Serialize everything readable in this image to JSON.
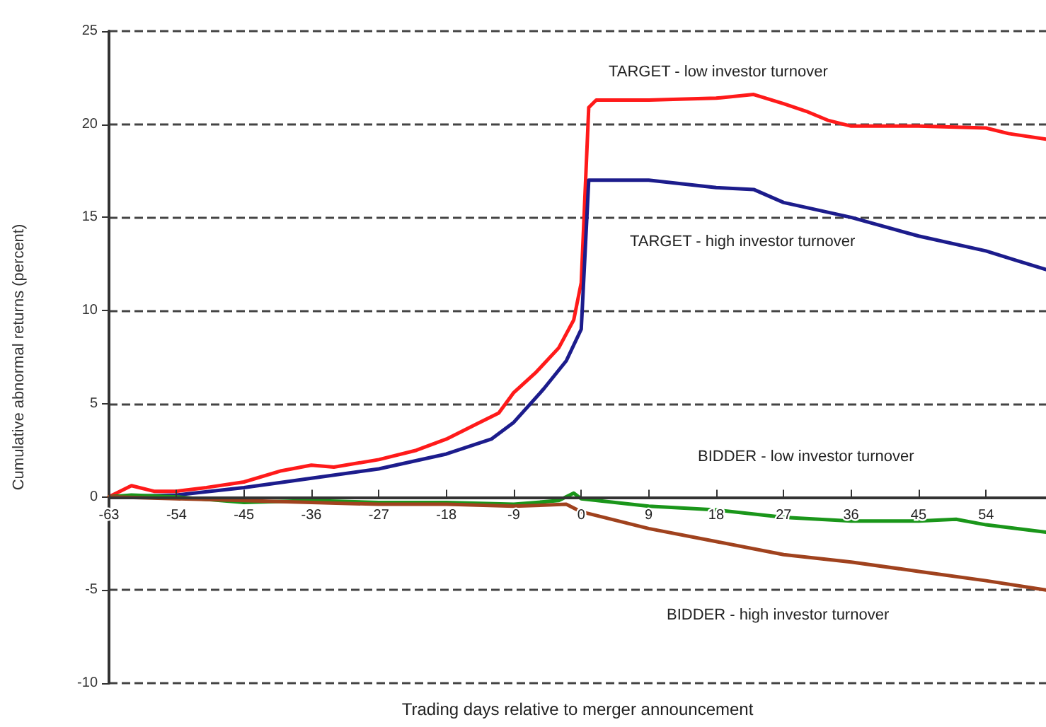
{
  "chart_data": {
    "type": "line",
    "xlabel": "Trading days relative to merger announcement",
    "ylabel": "Cumulative abnormal returns (percent)",
    "xlim": [
      -63,
      62
    ],
    "xticks": [
      -63,
      -54,
      -45,
      -36,
      -27,
      -18,
      -9,
      0,
      9,
      18,
      27,
      36,
      45,
      54
    ],
    "ylim": [
      -10,
      25
    ],
    "yticks": [
      -10,
      -5,
      0,
      5,
      10,
      15,
      20,
      25
    ],
    "grid": "y",
    "legend": false,
    "marker": "none",
    "line_style": "solid",
    "series": [
      {
        "name": "TARGET - low investor turnover",
        "color": "#ff1a1a",
        "x": [
          -63,
          -60,
          -57,
          -54,
          -50,
          -45,
          -40,
          -36,
          -33,
          -27,
          -22,
          -18,
          -14,
          -11,
          -9,
          -6,
          -3,
          -1,
          0,
          1,
          2,
          9,
          18,
          23,
          27,
          30,
          33,
          36,
          45,
          54,
          57,
          62
        ],
        "values": [
          0,
          0.6,
          0.3,
          0.3,
          0.5,
          0.8,
          1.4,
          1.7,
          1.6,
          2.0,
          2.5,
          3.1,
          3.9,
          4.5,
          5.6,
          6.7,
          8.0,
          9.5,
          11.5,
          20.9,
          21.3,
          21.3,
          21.4,
          21.6,
          21.1,
          20.7,
          20.2,
          19.9,
          19.9,
          19.8,
          19.5,
          19.2
        ]
      },
      {
        "name": "TARGET - high investor turnover",
        "color": "#1c1c8c",
        "x": [
          -63,
          -54,
          -45,
          -36,
          -27,
          -18,
          -12,
          -9,
          -5,
          -2,
          0,
          1,
          9,
          18,
          23,
          27,
          36,
          45,
          54,
          58,
          62
        ],
        "values": [
          0,
          0.1,
          0.5,
          1.0,
          1.5,
          2.3,
          3.1,
          4.0,
          5.8,
          7.3,
          9.0,
          17.0,
          17.0,
          16.6,
          16.5,
          15.8,
          15.0,
          14.0,
          13.2,
          12.7,
          12.2
        ]
      },
      {
        "name": "BIDDER - low investor turnover",
        "color": "#1a961a",
        "x": [
          -63,
          -60,
          -54,
          -45,
          -36,
          -27,
          -18,
          -9,
          -3,
          -1,
          0,
          9,
          18,
          27,
          36,
          45,
          50,
          54,
          62
        ],
        "values": [
          0,
          0.1,
          0,
          -0.3,
          -0.2,
          -0.3,
          -0.3,
          -0.4,
          -0.2,
          0.2,
          -0.1,
          -0.5,
          -0.7,
          -1.1,
          -1.3,
          -1.3,
          -1.2,
          -1.5,
          -1.9
        ]
      },
      {
        "name": "BIDDER - high investor turnover",
        "color": "#a0421e",
        "x": [
          -63,
          -54,
          -45,
          -36,
          -27,
          -18,
          -9,
          -2,
          0,
          9,
          18,
          27,
          36,
          45,
          54,
          62
        ],
        "values": [
          0,
          -0.1,
          -0.2,
          -0.3,
          -0.4,
          -0.4,
          -0.5,
          -0.4,
          -0.8,
          -1.7,
          -2.4,
          -3.1,
          -3.5,
          -4.0,
          -4.5,
          -5.0
        ]
      }
    ]
  }
}
